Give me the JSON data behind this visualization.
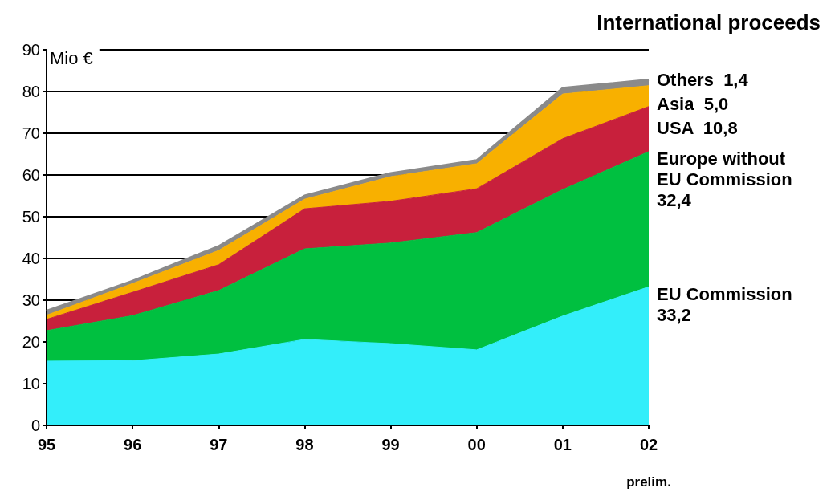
{
  "chart_data": {
    "type": "area",
    "stacked": true,
    "title": "International proceeds",
    "ylabel": "Mio €",
    "categories": [
      "95",
      "96",
      "97",
      "98",
      "99",
      "00",
      "01",
      "02"
    ],
    "ylim": [
      0,
      90
    ],
    "yticks": [
      0,
      10,
      20,
      30,
      40,
      50,
      60,
      70,
      80,
      90
    ],
    "grid": "y",
    "legend": false,
    "annotations": [
      "prelim."
    ],
    "series": [
      {
        "name": "EU Commission",
        "color": "#33eefa",
        "values": [
          15.4,
          15.5,
          17.1,
          20.6,
          19.6,
          18.1,
          26.2,
          33.2
        ],
        "value_labels": [
          null,
          null,
          null,
          null,
          null,
          null,
          null,
          "33,2"
        ]
      },
      {
        "name": "Europe without EU Commission",
        "color": "#00c040",
        "values": [
          7.3,
          10.8,
          15.2,
          21.7,
          24.1,
          28.1,
          30.3,
          32.4
        ],
        "value_labels": [
          null,
          null,
          null,
          null,
          null,
          null,
          null,
          "32,4"
        ]
      },
      {
        "name": "USA",
        "color": "#c8203c",
        "values": [
          2.7,
          5.6,
          6.2,
          9.6,
          10.0,
          10.5,
          12.2,
          10.8
        ],
        "value_labels": [
          null,
          null,
          null,
          null,
          null,
          null,
          null,
          "10,8"
        ]
      },
      {
        "name": "Asia",
        "color": "#f8b000",
        "values": [
          1.0,
          2.1,
          3.4,
          2.3,
          5.9,
          6.0,
          10.7,
          5.0
        ],
        "value_labels": [
          null,
          null,
          null,
          null,
          null,
          null,
          null,
          "5,0"
        ]
      },
      {
        "name": "Others",
        "color": "#8a8a8a",
        "values": [
          1.0,
          0.6,
          1.0,
          0.8,
          0.8,
          0.8,
          1.4,
          1.4
        ],
        "value_labels": [
          null,
          null,
          null,
          null,
          null,
          null,
          null,
          "1,4"
        ]
      }
    ]
  }
}
